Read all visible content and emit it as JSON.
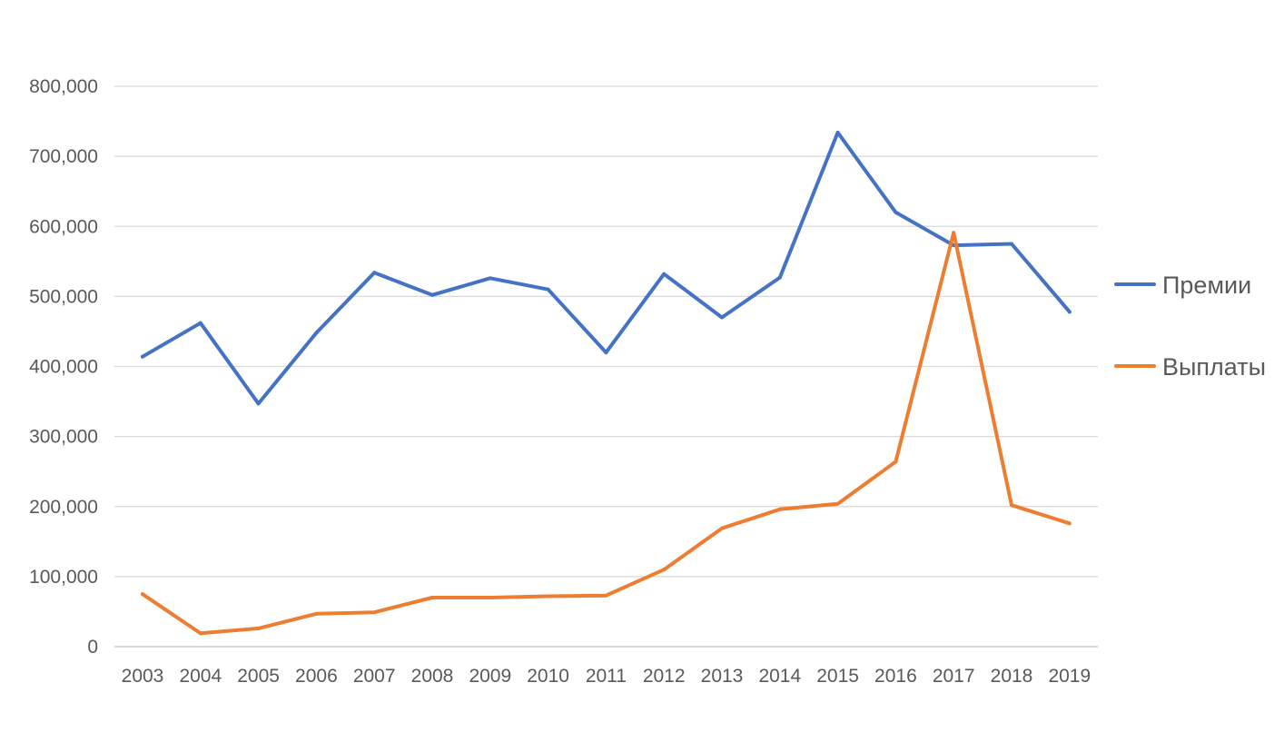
{
  "chart_data": {
    "type": "line",
    "title": "",
    "xlabel": "",
    "ylabel": "",
    "categories": [
      "2003",
      "2004",
      "2005",
      "2006",
      "2007",
      "2008",
      "2009",
      "2010",
      "2011",
      "2012",
      "2013",
      "2014",
      "2015",
      "2016",
      "2017",
      "2018",
      "2019"
    ],
    "ylim": [
      0,
      800000
    ],
    "yticks": [
      0,
      100000,
      200000,
      300000,
      400000,
      500000,
      600000,
      700000,
      800000
    ],
    "ytick_labels": [
      "0",
      "100,000",
      "200,000",
      "300,000",
      "400,000",
      "500,000",
      "600,000",
      "700,000",
      "800,000"
    ],
    "grid": "horizontal",
    "legend_position": "right",
    "series": [
      {
        "name": "Премии",
        "color": "#4472C4",
        "values": [
          414000,
          462000,
          347000,
          448000,
          534000,
          502000,
          526000,
          510000,
          420000,
          532000,
          470000,
          527000,
          734000,
          620000,
          573000,
          575000,
          478000
        ]
      },
      {
        "name": "Выплаты",
        "color": "#ED7D31",
        "values": [
          75000,
          19000,
          26000,
          47000,
          49000,
          70000,
          70000,
          72000,
          73000,
          110000,
          169000,
          196000,
          204000,
          264000,
          591000,
          202000,
          176000
        ]
      }
    ],
    "gridline_color": "#D9D9D9",
    "text_color": "#595959"
  }
}
